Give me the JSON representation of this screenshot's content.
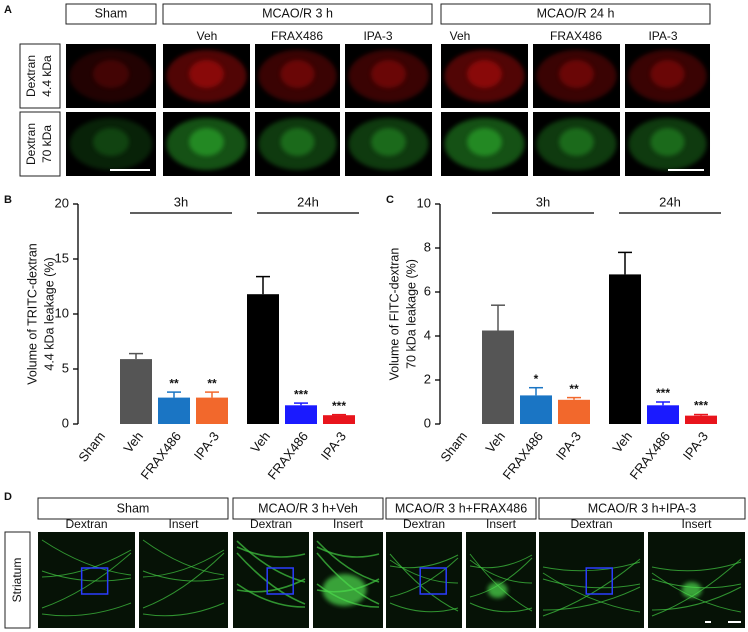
{
  "panel_a": {
    "label": "A",
    "headers": [
      "Sham",
      "MCAO/R 3 h",
      "MCAO/R 24 h"
    ],
    "subheaders": [
      "Veh",
      "FRAX486",
      "IPA-3",
      "Veh",
      "FRAX486",
      "IPA-3"
    ],
    "rows": [
      [
        "Dextran",
        "4.4 kDa"
      ],
      [
        "Dextran",
        "70 kDa"
      ]
    ]
  },
  "chart_data": [
    {
      "type": "bar",
      "panel_label": "B",
      "ylabel": [
        "Volume of TRITC-dextran",
        "4.4 kDa leakage   (%)"
      ],
      "categories": [
        "Sham",
        "Veh",
        "FRAX486",
        "IPA-3",
        "Veh",
        "FRAX486",
        "IPA-3"
      ],
      "values": [
        0,
        5.9,
        2.4,
        2.4,
        11.8,
        1.7,
        0.8
      ],
      "errors": [
        0,
        0.5,
        0.5,
        0.5,
        1.6,
        0.2,
        0.05
      ],
      "colors": [
        "#555555",
        "#555555",
        "#1a75c4",
        "#f2682c",
        "#000000",
        "#1a1aff",
        "#e8141c"
      ],
      "significance": [
        null,
        null,
        "**",
        "**",
        null,
        "***",
        "***"
      ],
      "groups": [
        "3h",
        "24h"
      ],
      "ylim": [
        0,
        20
      ],
      "yticks": [
        0,
        5,
        10,
        15,
        20
      ]
    },
    {
      "type": "bar",
      "panel_label": "C",
      "ylabel": [
        "Volume of FITC-dextran",
        "70 kDa leakage (%)"
      ],
      "categories": [
        "Sham",
        "Veh",
        "FRAX486",
        "IPA-3",
        "Veh",
        "FRAX486",
        "IPA-3"
      ],
      "values": [
        0,
        4.25,
        1.3,
        1.1,
        6.8,
        0.85,
        0.38
      ],
      "errors": [
        0,
        1.15,
        0.35,
        0.1,
        1.0,
        0.15,
        0.05
      ],
      "colors": [
        "#555555",
        "#555555",
        "#1a75c4",
        "#f2682c",
        "#000000",
        "#1a1aff",
        "#e8141c"
      ],
      "significance": [
        null,
        null,
        "*",
        "**",
        null,
        "***",
        "***"
      ],
      "groups": [
        "3h",
        "24h"
      ],
      "ylim": [
        0,
        10
      ],
      "yticks": [
        0,
        2,
        4,
        6,
        8,
        10
      ]
    }
  ],
  "panel_d": {
    "label": "D",
    "row_label": "Striatum",
    "columns": [
      {
        "header": "Sham",
        "left": "Dextran",
        "right": "Insert"
      },
      {
        "header": "MCAO/R 3 h+Veh",
        "left": "Dextran",
        "right": "Insert"
      },
      {
        "header": "MCAO/R 3 h+FRAX486",
        "left": "Dextran",
        "right": "Insert"
      },
      {
        "header": "MCAO/R 3 h+IPA-3",
        "left": "Dextran",
        "right": "Insert"
      }
    ]
  }
}
